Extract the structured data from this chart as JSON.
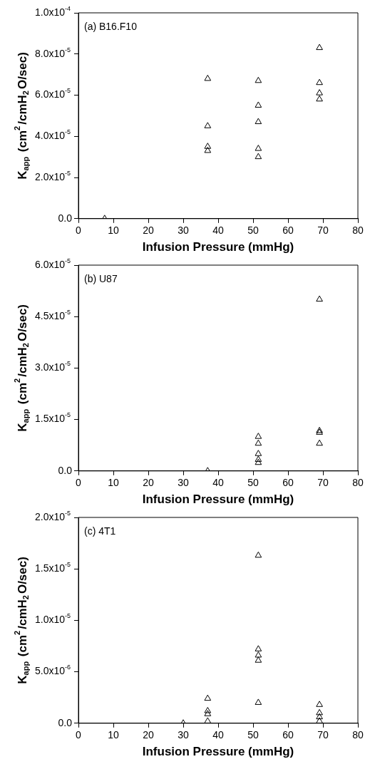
{
  "chart_data": [
    {
      "type": "scatter",
      "xlabel": "Infusion Pressure (mmHg)",
      "ylabel": "K$_{app}$ (cm$^{2}$/cmH$_{2}$O/sec)",
      "annotations": [
        "(a) B16.F10"
      ],
      "color": "#000000",
      "marker": "triangle",
      "x": [
        7.5,
        37,
        37,
        37,
        37,
        51.5,
        51.5,
        51.5,
        51.5,
        51.5,
        69,
        69,
        69,
        69
      ],
      "values": [
        0,
        6.8e-05,
        4.5e-05,
        3.5e-05,
        3.3e-05,
        6.7e-05,
        5.5e-05,
        4.7e-05,
        3.4e-05,
        3e-05,
        8.3e-05,
        6.6e-05,
        6.1e-05,
        5.8e-05
      ],
      "xlim": [
        0,
        80
      ],
      "xticks": [
        0,
        10,
        20,
        30,
        40,
        50,
        60,
        70,
        80
      ],
      "ylim": [
        0,
        0.0001
      ],
      "yticks": [
        {
          "value": 0,
          "label": "0.0"
        },
        {
          "value": 2e-05,
          "label": "2.0x10$^{-5}$"
        },
        {
          "value": 4e-05,
          "label": "4.0x10$^{-5}$"
        },
        {
          "value": 6e-05,
          "label": "6.0x10$^{-5}$"
        },
        {
          "value": 8e-05,
          "label": "8.0x10$^{-5}$"
        },
        {
          "value": 0.0001,
          "label": "1.0x10$^{-4}$"
        }
      ]
    },
    {
      "type": "scatter",
      "xlabel": "Infusion Pressure (mmHg)",
      "ylabel": "K$_{app}$ (cm$^{2}$/cmH$_{2}$O/sec)",
      "annotations": [
        "(b) U87"
      ],
      "color": "#000000",
      "marker": "triangle",
      "x": [
        37,
        51.5,
        51.5,
        51.5,
        51.5,
        51.5,
        69,
        69,
        69,
        69
      ],
      "values": [
        0,
        1e-05,
        8e-06,
        5e-06,
        3.3e-06,
        2.4e-06,
        5e-05,
        1.17e-05,
        1.12e-05,
        8e-06
      ],
      "xlim": [
        0,
        80
      ],
      "xticks": [
        0,
        10,
        20,
        30,
        40,
        50,
        60,
        70,
        80
      ],
      "ylim": [
        0,
        6e-05
      ],
      "yticks": [
        {
          "value": 0,
          "label": "0.0"
        },
        {
          "value": 1.5e-05,
          "label": "1.5x10$^{-5}$"
        },
        {
          "value": 3e-05,
          "label": "3.0x10$^{-5}$"
        },
        {
          "value": 4.5e-05,
          "label": "4.5x10$^{-5}$"
        },
        {
          "value": 6e-05,
          "label": "6.0x10$^{-5}$"
        }
      ]
    },
    {
      "type": "scatter",
      "xlabel": "Infusion Pressure (mmHg)",
      "ylabel": "K$_{app}$ (cm$^{2}$/cmH$_{2}$O/sec)",
      "annotations": [
        "(c) 4T1"
      ],
      "color": "#000000",
      "marker": "triangle",
      "x": [
        30,
        37,
        37,
        37,
        37,
        51.5,
        51.5,
        51.5,
        51.5,
        51.5,
        69,
        69,
        69,
        69
      ],
      "values": [
        0,
        2.4e-06,
        1.2e-06,
        9e-07,
        2e-07,
        1.63e-05,
        7.2e-06,
        6.6e-06,
        6.1e-06,
        2e-06,
        1.8e-06,
        1e-06,
        6e-07,
        2e-07
      ],
      "xlim": [
        0,
        80
      ],
      "xticks": [
        0,
        10,
        20,
        30,
        40,
        50,
        60,
        70,
        80
      ],
      "ylim": [
        0,
        2e-05
      ],
      "yticks": [
        {
          "value": 0,
          "label": "0.0"
        },
        {
          "value": 5e-06,
          "label": "5.0x10$^{-6}$"
        },
        {
          "value": 1e-05,
          "label": "1.0x10$^{-5}$"
        },
        {
          "value": 1.5e-05,
          "label": "1.5x10$^{-5}$"
        },
        {
          "value": 2e-05,
          "label": "2.0x10$^{-5}$"
        }
      ]
    }
  ]
}
